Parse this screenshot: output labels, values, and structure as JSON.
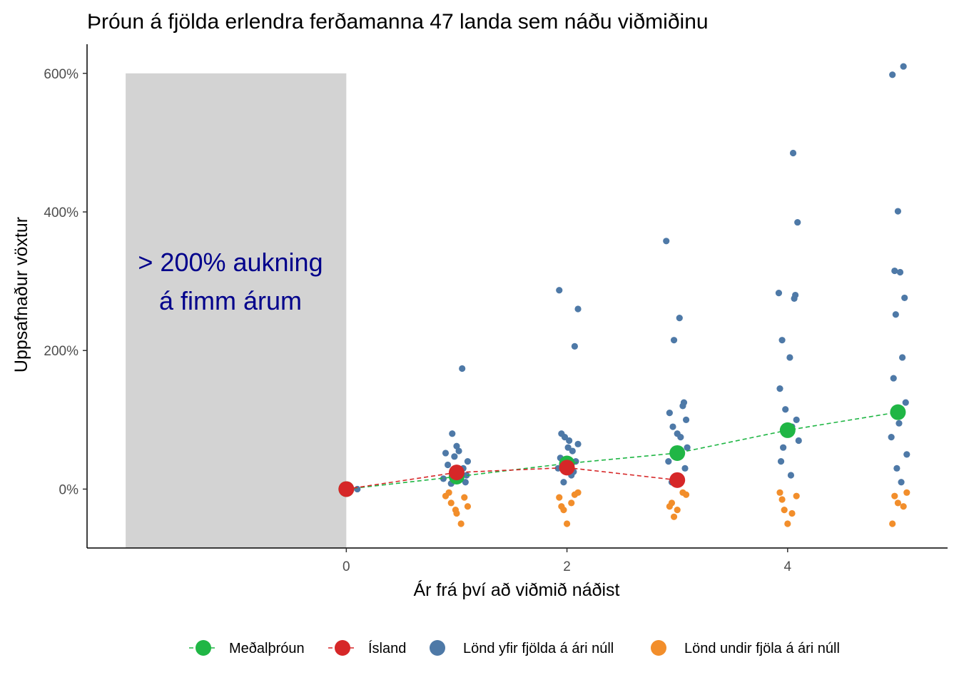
{
  "chart_data": {
    "type": "scatter",
    "title": "Þróun á fjölda erlendra ferðamanna 47 landa sem náðu viðmiðinu",
    "xlabel": "Ár frá því að viðmið náðist",
    "ylabel": "Uppsafnaður vöxtur",
    "x_ticks": [
      0,
      2,
      4
    ],
    "x_tick_labels": [
      "0",
      "2",
      "4"
    ],
    "y_ticks": [
      0,
      200,
      400,
      600
    ],
    "y_tick_labels": [
      "0%",
      "200%",
      "400%",
      "600%"
    ],
    "xlim": [
      -2.35,
      5.45
    ],
    "ylim": [
      -85,
      642
    ],
    "grid": false,
    "legend_position": "bottom",
    "shaded_region": {
      "x": [
        -2,
        0
      ],
      "y": [
        -85,
        600
      ],
      "color": "#d3d3d3"
    },
    "annotation": {
      "lines": [
        "> 200% aukning",
        "á fimm árum"
      ],
      "x": -1.05,
      "y": 300,
      "color": "#00008b"
    },
    "series": [
      {
        "name": "Meðalþróun",
        "color": "#20b645",
        "mode": "line+markers",
        "x": [
          0,
          1,
          2,
          3,
          4,
          5
        ],
        "y": [
          0,
          18,
          37,
          52,
          85,
          111
        ]
      },
      {
        "name": "Ísland",
        "color": "#d62728",
        "mode": "line+markers",
        "x": [
          0,
          1,
          2,
          3
        ],
        "y": [
          0,
          24,
          31,
          13
        ]
      },
      {
        "name": "Lönd yfir fjölda á ári núll",
        "color": "#4e79a7",
        "mode": "points",
        "x": [
          0.1,
          0.9,
          0.96,
          1.05,
          1.08,
          0.92,
          1.0,
          1.03,
          1.1,
          0.95,
          1.02,
          0.88,
          1.06,
          0.98,
          1.09,
          1.93,
          2.1,
          2.07,
          1.95,
          2.02,
          2.05,
          1.98,
          2.08,
          1.92,
          2.01,
          2.04,
          1.97,
          2.1,
          1.94,
          2.06,
          2.9,
          3.02,
          2.97,
          3.06,
          3.08,
          2.93,
          3.0,
          3.05,
          2.96,
          3.09,
          2.92,
          3.03,
          2.98,
          3.07,
          2.95,
          4.05,
          4.09,
          3.92,
          4.07,
          4.06,
          3.95,
          4.02,
          3.93,
          4.08,
          3.98,
          4.04,
          3.96,
          4.1,
          3.94,
          4.03,
          5.05,
          4.95,
          5.0,
          4.97,
          5.02,
          5.06,
          4.98,
          5.04,
          4.96,
          5.07,
          5.01,
          4.94,
          5.08,
          4.99,
          5.03
        ],
        "y": [
          0,
          52,
          80,
          174,
          10,
          35,
          62,
          25,
          40,
          8,
          55,
          15,
          30,
          47,
          20,
          287,
          260,
          206,
          80,
          70,
          55,
          75,
          40,
          30,
          60,
          20,
          10,
          65,
          45,
          25,
          358,
          247,
          215,
          125,
          100,
          110,
          80,
          120,
          90,
          60,
          40,
          75,
          55,
          30,
          10,
          485,
          385,
          283,
          280,
          275,
          215,
          190,
          145,
          100,
          115,
          90,
          60,
          70,
          40,
          20,
          610,
          598,
          401,
          315,
          313,
          276,
          252,
          190,
          160,
          125,
          95,
          75,
          50,
          30,
          10
        ]
      },
      {
        "name": "Lönd undir fjöla á ári núll",
        "color": "#f28e2b",
        "mode": "points",
        "x": [
          0.9,
          0.95,
          1.0,
          1.04,
          1.07,
          1.1,
          0.93,
          0.99,
          1.93,
          1.97,
          2.0,
          2.04,
          2.07,
          2.1,
          1.95,
          2.93,
          2.97,
          3.0,
          3.05,
          3.08,
          2.95,
          3.93,
          3.97,
          4.0,
          4.04,
          4.08,
          3.95,
          4.95,
          5.0,
          5.05,
          5.08,
          4.97
        ],
        "y": [
          -10,
          -20,
          -35,
          -50,
          -12,
          -25,
          -5,
          -30,
          -12,
          -30,
          -50,
          -20,
          -8,
          -5,
          -25,
          -25,
          -40,
          -30,
          -5,
          -8,
          -20,
          -5,
          -30,
          -50,
          -35,
          -10,
          -15,
          -50,
          -20,
          -25,
          -5,
          -10
        ]
      }
    ]
  }
}
